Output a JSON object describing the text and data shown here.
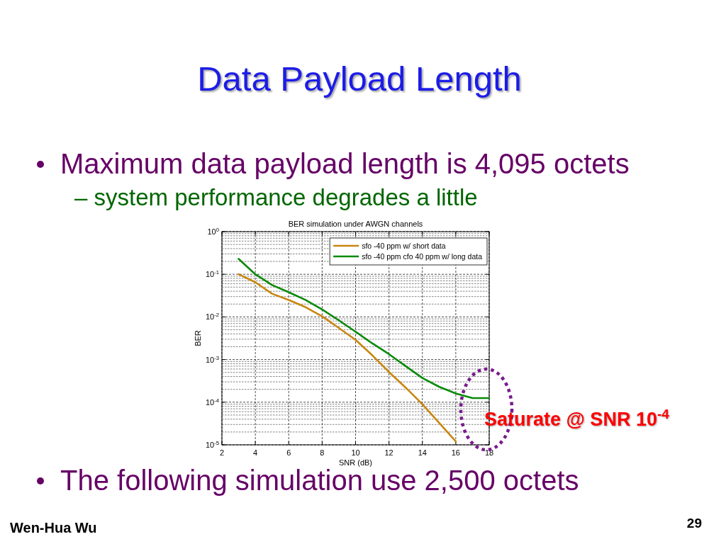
{
  "chart_data": {
    "type": "line",
    "title": "Data Payload Length",
    "subtitle": "BER simulation under AWGN channels",
    "xlabel": "SNR (dB)",
    "ylabel": "BER",
    "x": [
      3,
      4,
      5,
      6,
      7,
      8,
      9,
      10,
      11,
      12,
      13,
      14,
      15,
      16,
      17,
      18
    ],
    "series": [
      {
        "name": "sfo -40 ppm w/ short data",
        "color": "#c8870f",
        "values": [
          0.1,
          0.065,
          0.035,
          0.025,
          0.017,
          0.0103,
          0.0055,
          0.0029,
          0.00126,
          0.00051,
          0.00022,
          9e-05,
          3.3e-05,
          1.2e-05,
          null,
          null
        ]
      },
      {
        "name": "sfo -40 ppm cfo 40 ppm w/ long data",
        "color": "#0b8a0b",
        "values": [
          0.23,
          0.1,
          0.056,
          0.038,
          0.025,
          0.015,
          0.0083,
          0.0045,
          0.0024,
          0.00134,
          0.0007,
          0.00037,
          0.00023,
          0.00016,
          0.000125,
          0.000125
        ]
      }
    ],
    "xlim": [
      2,
      18
    ],
    "xticks": [
      2,
      4,
      6,
      8,
      10,
      12,
      14,
      16,
      18
    ],
    "ylim": [
      1e-05,
      1
    ],
    "yticks": [
      {
        "value": 1,
        "label": "10$^{0}$"
      },
      {
        "value": 0.1,
        "label": "10$^{-1}$"
      },
      {
        "value": 0.01,
        "label": "10$^{-2}$"
      },
      {
        "value": 0.001,
        "label": "10$^{-3}$"
      },
      {
        "value": 0.0001,
        "label": "10$^{-4}$"
      },
      {
        "value": 1e-05,
        "label": "10$^{-5}$"
      }
    ],
    "log": "y",
    "grid": true,
    "legend": "top right",
    "annotations": [
      "Maximum data payload length is 4,095 octets",
      "– system performance degrades a little",
      "Saturate @ SNR 10$^{-4}$",
      "The following simulation use 2,500 octets",
      "Wen-Hua Wu",
      "29"
    ]
  }
}
